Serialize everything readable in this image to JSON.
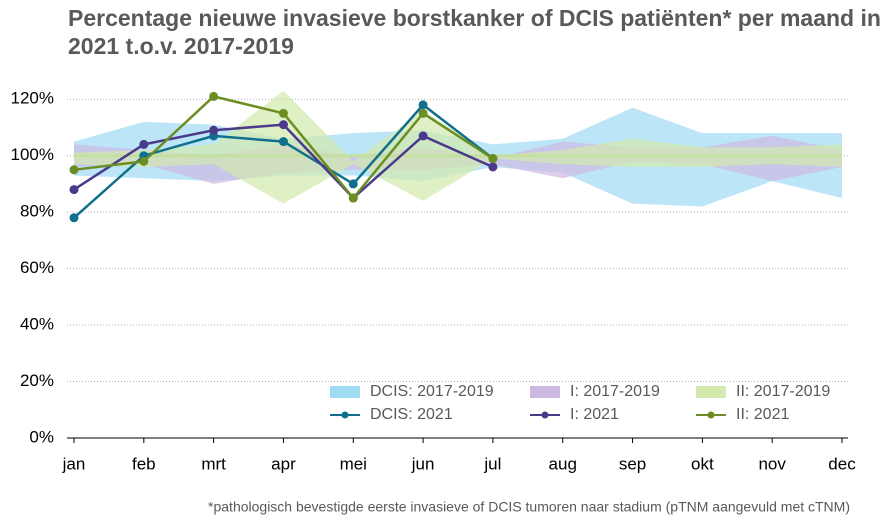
{
  "chart_data": {
    "type": "line",
    "title": "Percentage nieuwe invasieve borstkanker of DCIS patiënten* per maand in 2021 t.o.v. 2017-2019",
    "footnote": "*pathologisch bevestigde eerste invasieve of DCIS tumoren naar stadium (pTNM aangevuld met cTNM)",
    "categories": [
      "jan",
      "feb",
      "mrt",
      "apr",
      "mei",
      "jun",
      "jul",
      "aug",
      "sep",
      "okt",
      "nov",
      "dec"
    ],
    "ylim": [
      0,
      130
    ],
    "yticks": [
      {
        "value": 0,
        "label": "0%"
      },
      {
        "value": 20,
        "label": "20%"
      },
      {
        "value": 40,
        "label": "40%"
      },
      {
        "value": 60,
        "label": "60%"
      },
      {
        "value": 80,
        "label": "80%"
      },
      {
        "value": 100,
        "label": "100%"
      },
      {
        "value": 120,
        "label": "120%"
      }
    ],
    "grid": true,
    "reference_line": 100,
    "bands": [
      {
        "name": "DCIS: 2017-2019",
        "color": "#9fdcf3",
        "lower": [
          93,
          92,
          91,
          93,
          93,
          91,
          96,
          94,
          83,
          82,
          91,
          85
        ],
        "upper": [
          105,
          112,
          111,
          106,
          108,
          109,
          104,
          106,
          117,
          108,
          108,
          108
        ]
      },
      {
        "name": "I: 2017-2019",
        "color": "#cdb8e3",
        "lower": [
          96,
          97,
          90,
          94,
          95,
          95,
          97,
          92,
          98,
          97,
          91,
          96
        ],
        "upper": [
          104,
          102,
          100,
          104,
          100,
          103,
          99,
          105,
          103,
          103,
          107,
          102
        ]
      },
      {
        "name": "II: 2017-2019",
        "color": "#d3e9ad",
        "lower": [
          97,
          96,
          97,
          83,
          97,
          84,
          99,
          97,
          96,
          96,
          97,
          96
        ],
        "upper": [
          101,
          102,
          104,
          123,
          98,
          116,
          100,
          102,
          106,
          103,
          103,
          104
        ]
      }
    ],
    "series": [
      {
        "name": "DCIS: 2021",
        "color": "#0f6f8c",
        "values": [
          78,
          100,
          107,
          105,
          90,
          118,
          99,
          null,
          null,
          null,
          null,
          null
        ]
      },
      {
        "name": "I: 2021",
        "color": "#4b3a8c",
        "values": [
          88,
          104,
          109,
          111,
          85,
          107,
          96,
          null,
          null,
          null,
          null,
          null
        ]
      },
      {
        "name": "II: 2021",
        "color": "#6b8e23",
        "values": [
          95,
          98,
          121,
          115,
          85,
          115,
          99,
          null,
          null,
          null,
          null,
          null
        ]
      }
    ]
  }
}
